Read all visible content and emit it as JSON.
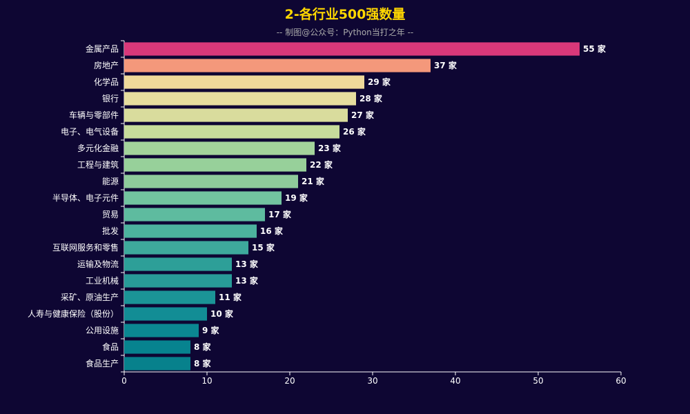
{
  "chart_data": {
    "type": "bar",
    "orientation": "horizontal",
    "title": "2-各行业500强数量",
    "subtitle": "-- 制图@公众号：Python当打之年 --",
    "value_suffix": " 家",
    "categories": [
      "金属产品",
      "房地产",
      "化学品",
      "银行",
      "车辆与零部件",
      "电子、电气设备",
      "多元化金融",
      "工程与建筑",
      "能源",
      "半导体、电子元件",
      "贸易",
      "批发",
      "互联网服务和零售",
      "运输及物流",
      "工业机械",
      "采矿、原油生产",
      "人寿与健康保险（股份）",
      "公用设施",
      "食品",
      "食品生产"
    ],
    "values": [
      55,
      37,
      29,
      28,
      27,
      26,
      23,
      22,
      21,
      19,
      17,
      16,
      15,
      13,
      13,
      11,
      10,
      9,
      8,
      8
    ],
    "colors": [
      "#d9387a",
      "#f4987b",
      "#efd99a",
      "#e6dd9e",
      "#d9dc9d",
      "#c7dc9b",
      "#a3d39b",
      "#97d09a",
      "#8ecb9b",
      "#72c4a0",
      "#5ebb9f",
      "#4cb39e",
      "#3ea99c",
      "#2d9f98",
      "#289b98",
      "#1b9497",
      "#128d95",
      "#0b8792",
      "#07838f",
      "#07818c"
    ],
    "xlim": [
      0,
      60
    ],
    "xticks": [
      0,
      10,
      20,
      30,
      40,
      50,
      60
    ],
    "xlabel": "",
    "ylabel": "",
    "grid": false,
    "legend": "none"
  }
}
